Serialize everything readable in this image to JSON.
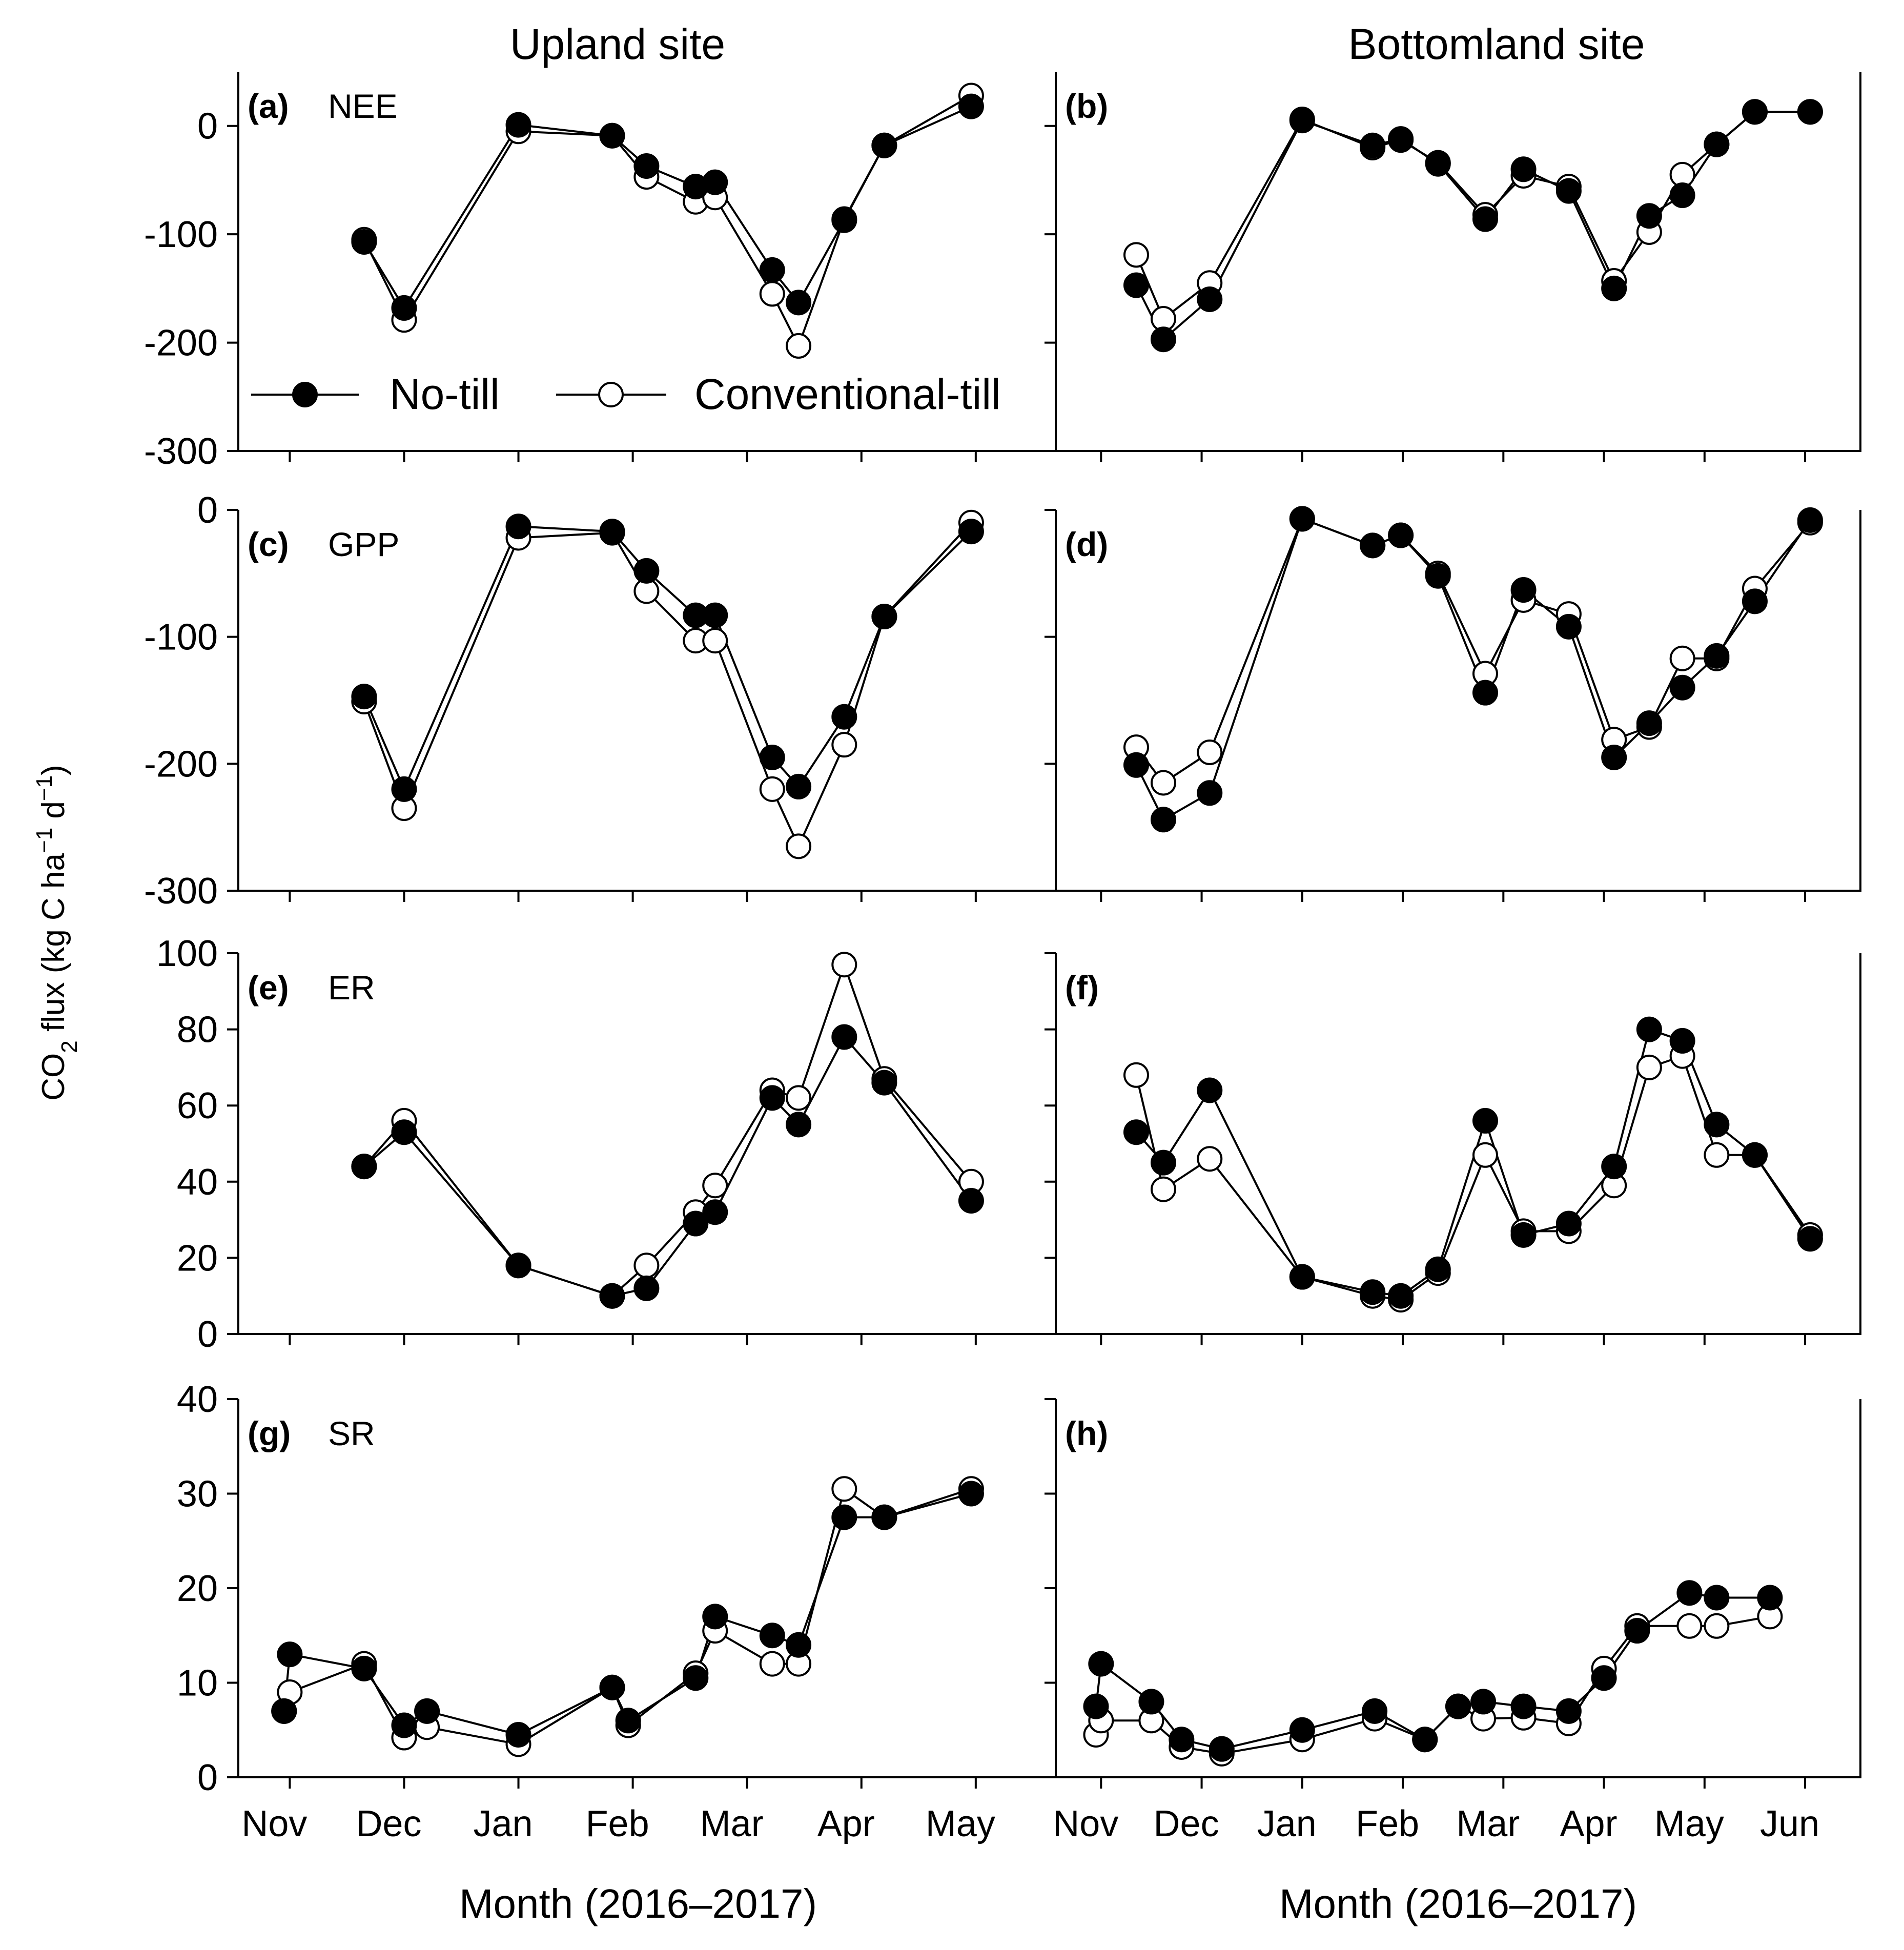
{
  "figure": {
    "site_titles": [
      "Upland site",
      "Bottomland site"
    ],
    "y_axis_title": {
      "prefix": "CO",
      "sub": "2",
      "text": " flux (kg C ha",
      "sup1": "−1",
      "mid": " d",
      "sup2": "−1",
      "suffix": ")"
    },
    "x_axis_title": "Month (2016–2017)",
    "legend": {
      "no_till": "No-till",
      "conventional_till": "Conventional-till"
    },
    "colors": {
      "no_till": "#000000",
      "conventional_till": "#ffffff",
      "axis": "#000000"
    }
  },
  "chart_data": [
    {
      "type": "line",
      "panel": "(a)",
      "variable": "NEE",
      "site": "Upland site",
      "x_ticks": [
        "Nov",
        "Dec",
        "Jan",
        "Feb",
        "Mar",
        "Apr",
        "May"
      ],
      "ylim": [
        -300,
        50
      ],
      "y_ticks": [
        0,
        -100,
        -200,
        -300
      ],
      "series": [
        {
          "name": "No-till",
          "x": [
            1.65,
            2.0,
            3.0,
            3.82,
            4.12,
            4.55,
            4.72,
            5.22,
            5.45,
            5.85,
            6.2,
            6.96
          ],
          "values": [
            -107,
            -168,
            1,
            -9,
            -37,
            -56,
            -52,
            -133,
            -163,
            -87,
            -18,
            18
          ]
        },
        {
          "name": "Conventional-till",
          "x": [
            1.65,
            2.0,
            3.0,
            3.82,
            4.12,
            4.55,
            4.72,
            5.22,
            5.45,
            5.85,
            6.2,
            6.96
          ],
          "values": [
            -105,
            -179,
            -5,
            -9,
            -47,
            -70,
            -66,
            -155,
            -203,
            -86,
            -18,
            28
          ]
        }
      ]
    },
    {
      "type": "line",
      "panel": "(b)",
      "variable": "",
      "site": "Bottomland site",
      "x_ticks": [
        "Nov",
        "Dec",
        "Jan",
        "Feb",
        "Mar",
        "Apr",
        "May",
        "Jun"
      ],
      "ylim": [
        -300,
        50
      ],
      "y_ticks": [
        0,
        -100,
        -200,
        -300
      ],
      "series": [
        {
          "name": "No-till",
          "x": [
            1.35,
            1.62,
            2.08,
            3.0,
            3.7,
            3.98,
            4.35,
            4.82,
            5.2,
            5.65,
            6.1,
            6.45,
            6.78,
            7.12,
            7.5,
            8.05
          ],
          "values": [
            -147,
            -197,
            -160,
            5,
            -18,
            -12,
            -35,
            -86,
            -40,
            -60,
            -150,
            -83,
            -64,
            -17,
            13,
            13
          ]
        },
        {
          "name": "Conventional-till",
          "x": [
            1.35,
            1.62,
            2.08,
            3.0,
            3.7,
            3.98,
            4.35,
            4.82,
            5.2,
            5.65,
            6.1,
            6.45,
            6.78,
            7.12,
            7.5,
            8.05
          ],
          "values": [
            -119,
            -178,
            -145,
            6,
            -20,
            -13,
            -34,
            -82,
            -46,
            -56,
            -143,
            -98,
            -45,
            -17,
            13,
            13
          ]
        }
      ]
    },
    {
      "type": "line",
      "panel": "(c)",
      "variable": "GPP",
      "site": "Upland site",
      "x_ticks": [
        "Nov",
        "Dec",
        "Jan",
        "Feb",
        "Mar",
        "Apr",
        "May"
      ],
      "ylim": [
        -300,
        0
      ],
      "y_ticks": [
        0,
        -100,
        -200,
        -300
      ],
      "series": [
        {
          "name": "No-till",
          "x": [
            1.65,
            2.0,
            3.0,
            3.82,
            4.12,
            4.55,
            4.72,
            5.22,
            5.45,
            5.85,
            6.2,
            6.96
          ],
          "values": [
            -147,
            -220,
            -13,
            -17,
            -48,
            -83,
            -83,
            -195,
            -218,
            -163,
            -84,
            -17
          ]
        },
        {
          "name": "Conventional-till",
          "x": [
            1.65,
            2.0,
            3.0,
            3.82,
            4.12,
            4.55,
            4.72,
            5.22,
            5.45,
            5.85,
            6.2,
            6.96
          ],
          "values": [
            -151,
            -235,
            -22,
            -18,
            -64,
            -103,
            -103,
            -220,
            -265,
            -185,
            -84,
            -10
          ]
        }
      ]
    },
    {
      "type": "line",
      "panel": "(d)",
      "variable": "",
      "site": "Bottomland site",
      "x_ticks": [
        "Nov",
        "Dec",
        "Jan",
        "Feb",
        "Mar",
        "Apr",
        "May",
        "Jun"
      ],
      "ylim": [
        -300,
        0
      ],
      "y_ticks": [
        0,
        -100,
        -200,
        -300
      ],
      "series": [
        {
          "name": "No-till",
          "x": [
            1.35,
            1.62,
            2.08,
            3.0,
            3.7,
            3.98,
            4.35,
            4.82,
            5.2,
            5.65,
            6.1,
            6.45,
            6.78,
            7.12,
            7.5,
            8.05
          ],
          "values": [
            -201,
            -244,
            -223,
            -7,
            -28,
            -20,
            -52,
            -144,
            -63,
            -92,
            -195,
            -168,
            -140,
            -115,
            -72,
            -8
          ]
        },
        {
          "name": "Conventional-till",
          "x": [
            1.35,
            1.62,
            2.08,
            3.0,
            3.7,
            3.98,
            4.35,
            4.82,
            5.2,
            5.65,
            6.1,
            6.45,
            6.78,
            7.12,
            7.5,
            8.05
          ],
          "values": [
            -187,
            -215,
            -191,
            -7,
            -28,
            -20,
            -50,
            -129,
            -71,
            -82,
            -181,
            -171,
            -117,
            -117,
            -62,
            -10
          ]
        }
      ]
    },
    {
      "type": "line",
      "panel": "(e)",
      "variable": "ER",
      "site": "Upland site",
      "x_ticks": [
        "Nov",
        "Dec",
        "Jan",
        "Feb",
        "Mar",
        "Apr",
        "May"
      ],
      "ylim": [
        0,
        100
      ],
      "y_ticks": [
        0,
        20,
        40,
        60,
        80,
        100
      ],
      "series": [
        {
          "name": "No-till",
          "x": [
            1.65,
            2.0,
            3.0,
            3.82,
            4.12,
            4.55,
            4.72,
            5.22,
            5.45,
            5.85,
            6.2,
            6.96
          ],
          "values": [
            44,
            53,
            18,
            10,
            12,
            29,
            32,
            62,
            55,
            78,
            66,
            35
          ]
        },
        {
          "name": "Conventional-till",
          "x": [
            1.65,
            2.0,
            3.0,
            3.82,
            4.12,
            4.55,
            4.72,
            5.22,
            5.45,
            5.85,
            6.2,
            6.96
          ],
          "values": [
            44,
            56,
            18,
            10,
            18,
            32,
            39,
            64,
            62,
            97,
            67,
            40
          ]
        }
      ]
    },
    {
      "type": "line",
      "panel": "(f)",
      "variable": "",
      "site": "Bottomland site",
      "x_ticks": [
        "Nov",
        "Dec",
        "Jan",
        "Feb",
        "Mar",
        "Apr",
        "May",
        "Jun"
      ],
      "ylim": [
        0,
        100
      ],
      "y_ticks": [
        0,
        20,
        40,
        60,
        80,
        100
      ],
      "series": [
        {
          "name": "No-till",
          "x": [
            1.35,
            1.62,
            2.08,
            3.0,
            3.7,
            3.98,
            4.35,
            4.82,
            5.2,
            5.65,
            6.1,
            6.45,
            6.78,
            7.12,
            7.5,
            8.05
          ],
          "values": [
            53,
            45,
            64,
            15,
            11,
            10,
            17,
            56,
            26,
            29,
            44,
            80,
            77,
            55,
            47,
            25
          ]
        },
        {
          "name": "Conventional-till",
          "x": [
            1.35,
            1.62,
            2.08,
            3.0,
            3.7,
            3.98,
            4.35,
            4.82,
            5.2,
            5.65,
            6.1,
            6.45,
            6.78,
            7.12,
            7.5,
            8.05
          ],
          "values": [
            68,
            38,
            46,
            15,
            10,
            9,
            16,
            47,
            27,
            27,
            39,
            70,
            73,
            47,
            47,
            26
          ]
        }
      ]
    },
    {
      "type": "line",
      "panel": "(g)",
      "variable": "SR",
      "site": "Upland site",
      "x_ticks": [
        "Nov",
        "Dec",
        "Jan",
        "Feb",
        "Mar",
        "Apr",
        "May"
      ],
      "ylim": [
        0,
        40
      ],
      "y_ticks": [
        0,
        10,
        20,
        30,
        40
      ],
      "series": [
        {
          "name": "No-till",
          "x": [
            0.95,
            1.0,
            1.65,
            2.0,
            2.2,
            3.0,
            3.82,
            3.96,
            4.55,
            4.72,
            5.22,
            5.45,
            5.85,
            6.2,
            6.96
          ],
          "values": [
            7.0,
            13.0,
            11.5,
            5.5,
            7.0,
            4.5,
            9.5,
            6.0,
            10.5,
            17.0,
            15.0,
            14.0,
            27.5,
            27.5,
            30.0
          ]
        },
        {
          "name": "Conventional-till",
          "x": [
            0.95,
            1.0,
            1.65,
            2.0,
            2.2,
            3.0,
            3.82,
            3.96,
            4.55,
            4.72,
            5.22,
            5.45,
            5.85,
            6.2,
            6.96
          ],
          "values": [
            7.0,
            9.0,
            12.0,
            4.2,
            5.3,
            3.5,
            9.5,
            5.5,
            11.0,
            15.5,
            12.0,
            12.0,
            30.5,
            27.5,
            30.5
          ]
        }
      ]
    },
    {
      "type": "line",
      "panel": "(h)",
      "variable": "",
      "site": "Bottomland site",
      "x_ticks": [
        "Nov",
        "Dec",
        "Jan",
        "Feb",
        "Mar",
        "Apr",
        "May",
        "Jun"
      ],
      "ylim": [
        0,
        40
      ],
      "y_ticks": [
        0,
        10,
        20,
        30,
        40
      ],
      "series": [
        {
          "name": "No-till",
          "x": [
            0.95,
            1.0,
            1.5,
            1.8,
            2.2,
            3.0,
            3.72,
            4.22,
            4.55,
            4.8,
            5.2,
            5.65,
            6.0,
            6.33,
            6.85,
            7.12,
            7.65
          ],
          "values": [
            7.5,
            12.0,
            8.0,
            4.0,
            3.0,
            5.0,
            7.0,
            4.0,
            7.5,
            8.0,
            7.5,
            7.0,
            10.5,
            15.5,
            19.5,
            19.0,
            19.0
          ]
        },
        {
          "name": "Conventional-till",
          "x": [
            0.95,
            1.0,
            1.5,
            1.8,
            2.2,
            3.0,
            3.72,
            4.22,
            4.55,
            4.8,
            5.2,
            5.65,
            6.0,
            6.33,
            6.85,
            7.12,
            7.65
          ],
          "values": [
            4.5,
            6.0,
            6.0,
            3.2,
            2.5,
            4.0,
            6.2,
            4.0,
            7.5,
            6.2,
            6.3,
            5.7,
            11.5,
            16.0,
            16.0,
            16.0,
            17.0
          ]
        }
      ]
    }
  ]
}
